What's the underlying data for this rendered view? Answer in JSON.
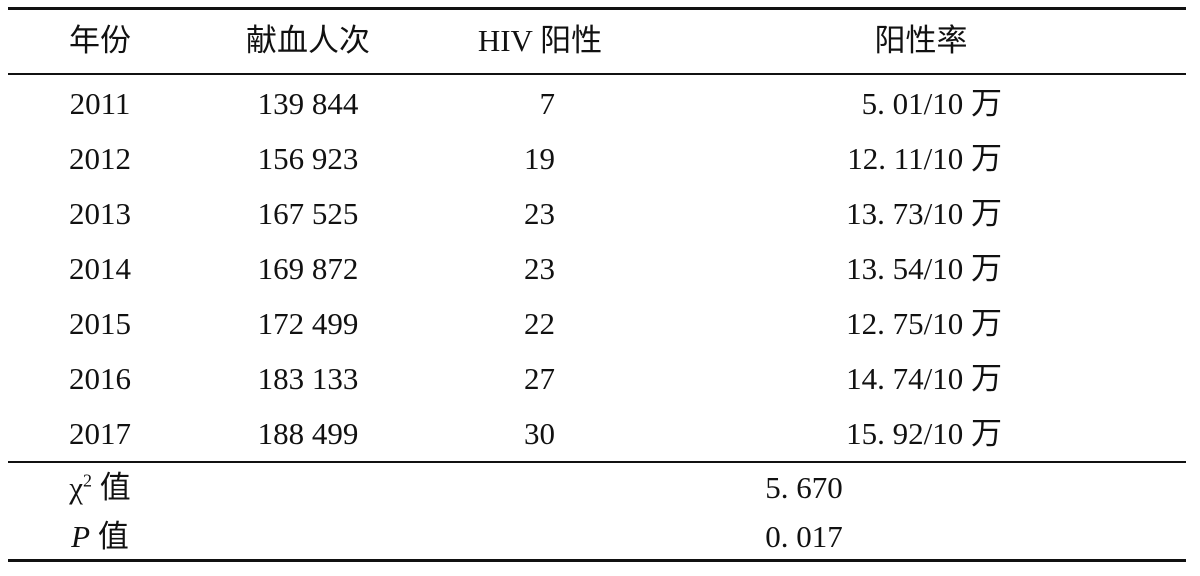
{
  "table": {
    "headers": {
      "year": "年份",
      "donations": "献血人次",
      "hiv_positive": "HIV 阳性",
      "positive_rate": "阳性率"
    },
    "rows": [
      {
        "year": "2011",
        "donations": "139 844",
        "hiv_positive": "7",
        "positive_rate": "5. 01/10 万"
      },
      {
        "year": "2012",
        "donations": "156 923",
        "hiv_positive": "19",
        "positive_rate": "12. 11/10 万"
      },
      {
        "year": "2013",
        "donations": "167 525",
        "hiv_positive": "23",
        "positive_rate": "13. 73/10 万"
      },
      {
        "year": "2014",
        "donations": "169 872",
        "hiv_positive": "23",
        "positive_rate": "13. 54/10 万"
      },
      {
        "year": "2015",
        "donations": "172 499",
        "hiv_positive": "22",
        "positive_rate": "12. 75/10 万"
      },
      {
        "year": "2016",
        "donations": "183 133",
        "hiv_positive": "27",
        "positive_rate": "14. 74/10 万"
      },
      {
        "year": "2017",
        "donations": "188 499",
        "hiv_positive": "30",
        "positive_rate": "15. 92/10 万"
      }
    ],
    "stats": {
      "chi_square": {
        "symbol": "χ",
        "power": "2",
        "suffix": " 值",
        "value": "5. 670"
      },
      "p_value": {
        "symbol": "P",
        "suffix": " 值",
        "value": "0. 017"
      }
    }
  }
}
